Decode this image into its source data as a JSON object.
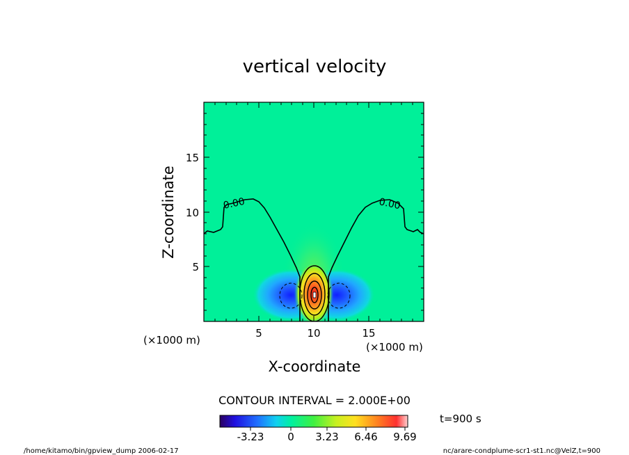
{
  "chart_data": {
    "type": "heatmap",
    "title": "vertical velocity",
    "xlabel": "X-coordinate",
    "ylabel": "Z-coordinate",
    "x_unit": "(×1000 m)",
    "y_unit": "(×1000 m)",
    "xlim": [
      0,
      20
    ],
    "ylim": [
      0,
      20
    ],
    "x_ticks": [
      "5",
      "10",
      "15"
    ],
    "y_ticks": [
      "5",
      "10",
      "15"
    ],
    "contour_interval": "CONTOUR INTERVAL = 2.000E+00",
    "contour_label": "0.00",
    "time_label": "t=900 s",
    "colorbar_ticks": [
      "-3.23",
      "0",
      "3.23",
      "6.46",
      "9.69"
    ],
    "colorbar_range": [
      -4.8,
      10.4
    ],
    "features": [
      {
        "type": "max",
        "x": 10,
        "z": 2.5,
        "value": 9.69
      },
      {
        "type": "min",
        "x": 8,
        "z": 2.5,
        "value": -3.23
      },
      {
        "type": "min",
        "x": 12,
        "z": 2.5,
        "value": -3.23
      }
    ],
    "footer_left": "/home/kitamo/bin/gpview_dump  2006-02-17",
    "footer_right": "nc/arare-condplume-scr1-st1.nc@VelZ,t=900",
    "colors": {
      "background_field": "#00f099",
      "positive_max": "#ff3030",
      "negative_min": "#1010ff"
    }
  }
}
